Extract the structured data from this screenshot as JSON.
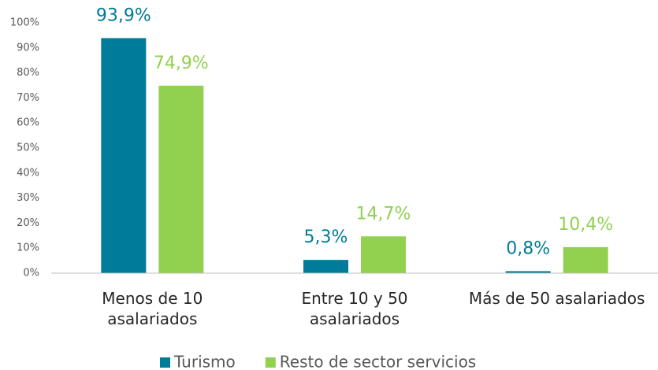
{
  "chart_data": {
    "type": "bar",
    "categories": [
      "Menos de 10 asalariados",
      "Entre 10 y 50 asalariados",
      "Más de 50 asalariados"
    ],
    "series": [
      {
        "name": "Turismo",
        "color": "#007b99",
        "values": [
          93.9,
          5.3,
          0.8
        ],
        "value_labels": [
          "93,9%",
          "5,3%",
          "0,8%"
        ]
      },
      {
        "name": "Resto de sector servicios",
        "color": "#92d050",
        "values": [
          74.9,
          14.7,
          10.4
        ],
        "value_labels": [
          "74,9%",
          "14,7%",
          "10,4%"
        ]
      }
    ],
    "ylim": [
      0,
      100
    ],
    "yticks": [
      {
        "value": 0,
        "label": "0%"
      },
      {
        "value": 10,
        "label": "10%"
      },
      {
        "value": 20,
        "label": "20%"
      },
      {
        "value": 30,
        "label": "30%"
      },
      {
        "value": 40,
        "label": "40%"
      },
      {
        "value": 50,
        "label": "50%"
      },
      {
        "value": 60,
        "label": "60%"
      },
      {
        "value": 70,
        "label": "70%"
      },
      {
        "value": 80,
        "label": "80%"
      },
      {
        "value": 90,
        "label": "90%"
      },
      {
        "value": 100,
        "label": "100%"
      }
    ],
    "grid": false,
    "legend": "bottom"
  }
}
